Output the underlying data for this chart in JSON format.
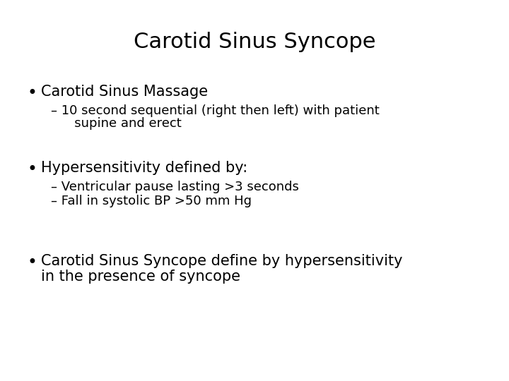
{
  "title": "Carotid Sinus Syncope",
  "title_fontsize": 22,
  "background_color": "#ffffff",
  "text_color": "#000000",
  "bullet1": "Carotid Sinus Massage",
  "bullet1_sub1": "– 10 second sequential (right then left) with patient",
  "bullet1_sub1b": "   supine and erect",
  "bullet2": "Hypersensitivity defined by:",
  "bullet2_sub1": "– Ventricular pause lasting >3 seconds",
  "bullet2_sub2": "– Fall in systolic BP >50 mm Hg",
  "bullet3a": "Carotid Sinus Syncope define by hypersensitivity",
  "bullet3b": "in the presence of syncope",
  "bullet_fontsize": 15,
  "sub_fontsize": 13,
  "bullet3_fontsize": 15,
  "bullet_symbol": "•"
}
